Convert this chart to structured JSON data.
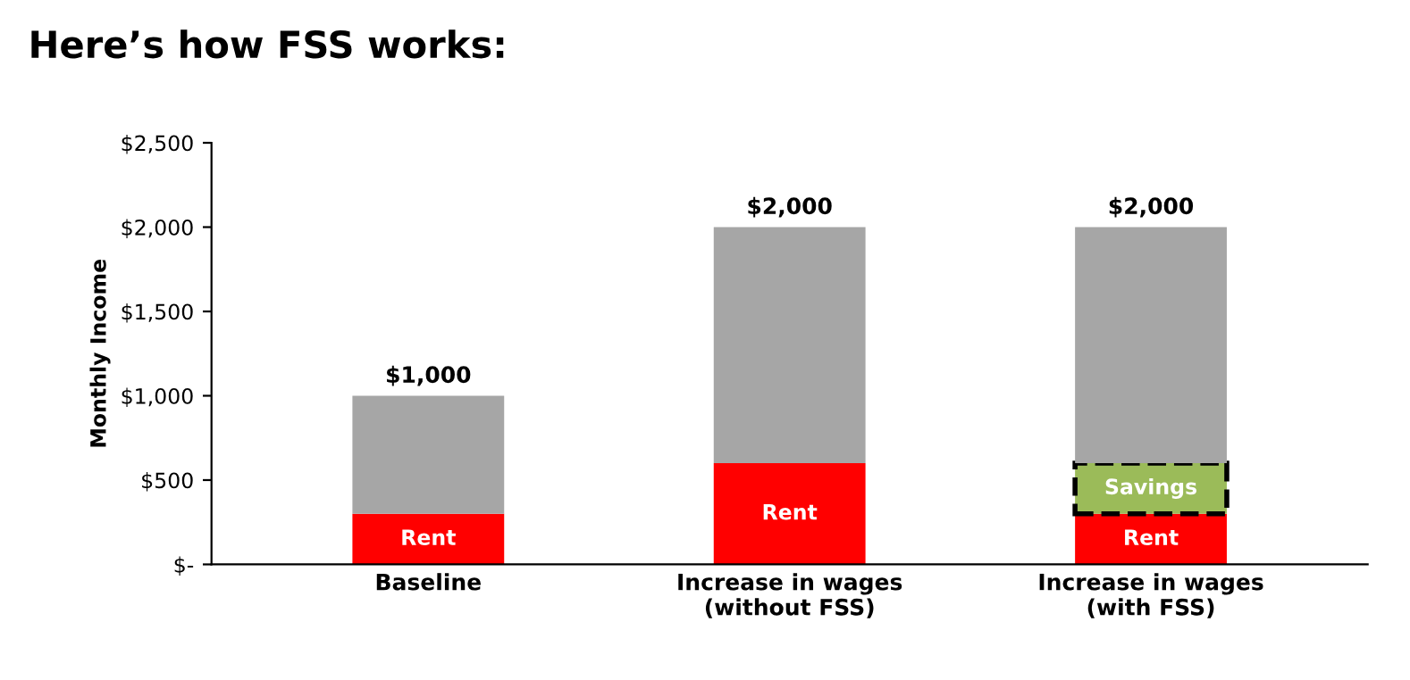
{
  "chart_data": {
    "type": "bar",
    "title": "Here’s how FSS works:",
    "ylabel": "Monthly Income",
    "categories": [
      "Baseline",
      "Increase in wages\n(without FSS)",
      "Increase in wages\n(with FSS)"
    ],
    "stacked": true,
    "series": [
      {
        "name": "Rent",
        "color": "#ff0000",
        "values": [
          300,
          600,
          300
        ]
      },
      {
        "name": "Savings",
        "color": "#9bbb59",
        "values": [
          null,
          null,
          300
        ],
        "line_style": "dashed"
      },
      {
        "color": "#a6a6a6",
        "values": [
          700,
          1400,
          1400
        ]
      }
    ],
    "totals": [
      "$1,000",
      "$2,000",
      "$2,000"
    ],
    "ylim": [
      0,
      2500
    ],
    "yticks": [
      {
        "value": 0,
        "label": "$-"
      },
      {
        "value": 500,
        "label": "$500"
      },
      {
        "value": 1000,
        "label": "$1,000"
      },
      {
        "value": 1500,
        "label": "$1,500"
      },
      {
        "value": 2000,
        "label": "$2,000"
      },
      {
        "value": 2500,
        "label": "$2,500"
      }
    ],
    "grid": false,
    "legend": false
  }
}
